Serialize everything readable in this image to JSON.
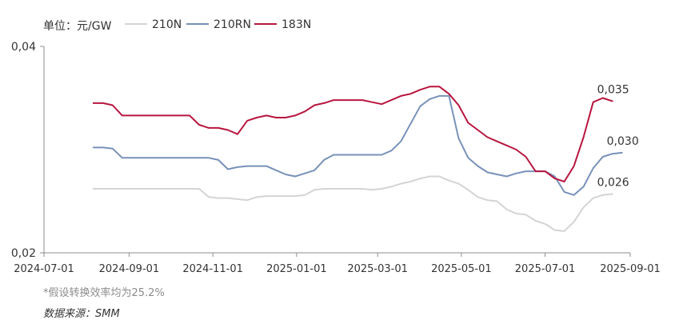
{
  "chart_data": {
    "type": "line",
    "unit_label": "单位：元/GW",
    "xlim": [
      "2024-07-01",
      "2025-09-01"
    ],
    "ylim": [
      0.02,
      0.04
    ],
    "xticks": [
      "2024-07-01",
      "2024-09-01",
      "2024-11-01",
      "2025-01-01",
      "2025-03-01",
      "2025-05-01",
      "2025-07-01",
      "2025-09-01"
    ],
    "yticks": [
      {
        "value": 0.02,
        "label": "0,02"
      },
      {
        "value": 0.04,
        "label": "0,04"
      }
    ],
    "legend_position": "top",
    "grid": false,
    "series": [
      {
        "name": "210N",
        "color": "#d4d4d4",
        "end_label": "0,026",
        "points": [
          [
            "2024-08-06",
            0.0262
          ],
          [
            "2024-08-13",
            0.0262
          ],
          [
            "2024-08-20",
            0.0262
          ],
          [
            "2024-08-27",
            0.0262
          ],
          [
            "2024-09-03",
            0.0262
          ],
          [
            "2024-09-10",
            0.0262
          ],
          [
            "2024-09-17",
            0.0262
          ],
          [
            "2024-09-24",
            0.0262
          ],
          [
            "2024-10-01",
            0.0262
          ],
          [
            "2024-10-08",
            0.0262
          ],
          [
            "2024-10-15",
            0.0262
          ],
          [
            "2024-10-22",
            0.0262
          ],
          [
            "2024-10-29",
            0.0254
          ],
          [
            "2024-11-05",
            0.0253
          ],
          [
            "2024-11-12",
            0.0253
          ],
          [
            "2024-11-19",
            0.0252
          ],
          [
            "2024-11-26",
            0.0251
          ],
          [
            "2024-12-03",
            0.0254
          ],
          [
            "2024-12-10",
            0.0255
          ],
          [
            "2024-12-17",
            0.0255
          ],
          [
            "2024-12-24",
            0.0255
          ],
          [
            "2024-12-31",
            0.0255
          ],
          [
            "2025-01-07",
            0.0256
          ],
          [
            "2025-01-14",
            0.0261
          ],
          [
            "2025-01-21",
            0.0262
          ],
          [
            "2025-01-28",
            0.0262
          ],
          [
            "2025-02-04",
            0.0262
          ],
          [
            "2025-02-11",
            0.0262
          ],
          [
            "2025-02-18",
            0.0262
          ],
          [
            "2025-02-25",
            0.0261
          ],
          [
            "2025-03-04",
            0.0262
          ],
          [
            "2025-03-11",
            0.0264
          ],
          [
            "2025-03-18",
            0.0267
          ],
          [
            "2025-03-25",
            0.0269
          ],
          [
            "2025-04-01",
            0.0272
          ],
          [
            "2025-04-08",
            0.0274
          ],
          [
            "2025-04-15",
            0.0274
          ],
          [
            "2025-04-22",
            0.027
          ],
          [
            "2025-04-29",
            0.0267
          ],
          [
            "2025-05-06",
            0.0261
          ],
          [
            "2025-05-13",
            0.0254
          ],
          [
            "2025-05-20",
            0.0251
          ],
          [
            "2025-05-27",
            0.025
          ],
          [
            "2025-06-03",
            0.0242
          ],
          [
            "2025-06-10",
            0.0238
          ],
          [
            "2025-06-17",
            0.0237
          ],
          [
            "2025-06-24",
            0.0231
          ],
          [
            "2025-07-01",
            0.0228
          ],
          [
            "2025-07-08",
            0.0222
          ],
          [
            "2025-07-15",
            0.0221
          ],
          [
            "2025-07-22",
            0.023
          ],
          [
            "2025-07-29",
            0.0244
          ],
          [
            "2025-08-05",
            0.0253
          ],
          [
            "2025-08-12",
            0.0256
          ],
          [
            "2025-08-19",
            0.0257
          ]
        ]
      },
      {
        "name": "210RN",
        "color": "#7891b8",
        "end_label": "0,030",
        "points": [
          [
            "2024-08-06",
            0.0302
          ],
          [
            "2024-08-13",
            0.0302
          ],
          [
            "2024-08-20",
            0.0301
          ],
          [
            "2024-08-27",
            0.0292
          ],
          [
            "2024-09-03",
            0.0292
          ],
          [
            "2024-09-10",
            0.0292
          ],
          [
            "2024-09-17",
            0.0292
          ],
          [
            "2024-09-24",
            0.0292
          ],
          [
            "2024-10-01",
            0.0292
          ],
          [
            "2024-10-08",
            0.0292
          ],
          [
            "2024-10-15",
            0.0292
          ],
          [
            "2024-10-22",
            0.0292
          ],
          [
            "2024-10-29",
            0.0292
          ],
          [
            "2024-11-05",
            0.029
          ],
          [
            "2024-11-12",
            0.0281
          ],
          [
            "2024-11-19",
            0.0283
          ],
          [
            "2024-11-26",
            0.0284
          ],
          [
            "2024-12-03",
            0.0284
          ],
          [
            "2024-12-10",
            0.0284
          ],
          [
            "2024-12-17",
            0.028
          ],
          [
            "2024-12-24",
            0.0276
          ],
          [
            "2024-12-31",
            0.0274
          ],
          [
            "2025-01-07",
            0.0277
          ],
          [
            "2025-01-14",
            0.028
          ],
          [
            "2025-01-21",
            0.029
          ],
          [
            "2025-01-28",
            0.0295
          ],
          [
            "2025-02-04",
            0.0295
          ],
          [
            "2025-02-11",
            0.0295
          ],
          [
            "2025-02-18",
            0.0295
          ],
          [
            "2025-02-25",
            0.0295
          ],
          [
            "2025-03-04",
            0.0295
          ],
          [
            "2025-03-11",
            0.0299
          ],
          [
            "2025-03-18",
            0.0308
          ],
          [
            "2025-03-25",
            0.0325
          ],
          [
            "2025-04-01",
            0.0342
          ],
          [
            "2025-04-08",
            0.0349
          ],
          [
            "2025-04-15",
            0.0352
          ],
          [
            "2025-04-22",
            0.0352
          ],
          [
            "2025-04-29",
            0.0311
          ],
          [
            "2025-05-06",
            0.0292
          ],
          [
            "2025-05-13",
            0.0284
          ],
          [
            "2025-05-20",
            0.0278
          ],
          [
            "2025-05-27",
            0.0276
          ],
          [
            "2025-06-03",
            0.0274
          ],
          [
            "2025-06-10",
            0.0277
          ],
          [
            "2025-06-17",
            0.0279
          ],
          [
            "2025-06-24",
            0.0279
          ],
          [
            "2025-07-01",
            0.0279
          ],
          [
            "2025-07-08",
            0.0274
          ],
          [
            "2025-07-15",
            0.0259
          ],
          [
            "2025-07-22",
            0.0256
          ],
          [
            "2025-07-29",
            0.0264
          ],
          [
            "2025-08-05",
            0.0282
          ],
          [
            "2025-08-12",
            0.0293
          ],
          [
            "2025-08-19",
            0.0296
          ],
          [
            "2025-08-26",
            0.0297
          ]
        ]
      },
      {
        "name": "183N",
        "color": "#b8163f",
        "end_label": "0,035",
        "points": [
          [
            "2024-08-06",
            0.0345
          ],
          [
            "2024-08-13",
            0.0345
          ],
          [
            "2024-08-20",
            0.0343
          ],
          [
            "2024-08-27",
            0.0333
          ],
          [
            "2024-09-03",
            0.0333
          ],
          [
            "2024-09-10",
            0.0333
          ],
          [
            "2024-09-17",
            0.0333
          ],
          [
            "2024-09-24",
            0.0333
          ],
          [
            "2024-10-01",
            0.0333
          ],
          [
            "2024-10-08",
            0.0333
          ],
          [
            "2024-10-15",
            0.0333
          ],
          [
            "2024-10-22",
            0.0324
          ],
          [
            "2024-10-29",
            0.0321
          ],
          [
            "2024-11-05",
            0.0321
          ],
          [
            "2024-11-12",
            0.0319
          ],
          [
            "2024-11-19",
            0.0315
          ],
          [
            "2024-11-26",
            0.0328
          ],
          [
            "2024-12-03",
            0.0331
          ],
          [
            "2024-12-10",
            0.0333
          ],
          [
            "2024-12-17",
            0.0331
          ],
          [
            "2024-12-24",
            0.0331
          ],
          [
            "2024-12-31",
            0.0333
          ],
          [
            "2025-01-07",
            0.0337
          ],
          [
            "2025-01-14",
            0.0343
          ],
          [
            "2025-01-21",
            0.0345
          ],
          [
            "2025-01-28",
            0.0348
          ],
          [
            "2025-02-04",
            0.0348
          ],
          [
            "2025-02-11",
            0.0348
          ],
          [
            "2025-02-18",
            0.0348
          ],
          [
            "2025-02-25",
            0.0346
          ],
          [
            "2025-03-04",
            0.0344
          ],
          [
            "2025-03-11",
            0.0348
          ],
          [
            "2025-03-18",
            0.0352
          ],
          [
            "2025-03-25",
            0.0354
          ],
          [
            "2025-04-01",
            0.0358
          ],
          [
            "2025-04-08",
            0.0361
          ],
          [
            "2025-04-15",
            0.0361
          ],
          [
            "2025-04-22",
            0.0354
          ],
          [
            "2025-04-29",
            0.0343
          ],
          [
            "2025-05-06",
            0.0326
          ],
          [
            "2025-05-13",
            0.0319
          ],
          [
            "2025-05-20",
            0.0312
          ],
          [
            "2025-05-27",
            0.0308
          ],
          [
            "2025-06-03",
            0.0304
          ],
          [
            "2025-06-10",
            0.03
          ],
          [
            "2025-06-17",
            0.0293
          ],
          [
            "2025-06-24",
            0.0279
          ],
          [
            "2025-07-01",
            0.0279
          ],
          [
            "2025-07-08",
            0.0272
          ],
          [
            "2025-07-15",
            0.0269
          ],
          [
            "2025-07-22",
            0.0284
          ],
          [
            "2025-07-29",
            0.0312
          ],
          [
            "2025-08-05",
            0.0346
          ],
          [
            "2025-08-12",
            0.035
          ],
          [
            "2025-08-19",
            0.0347
          ]
        ]
      }
    ]
  },
  "footnote": "*假设转换效率均为25.2%",
  "source": "数据来源：SMM"
}
